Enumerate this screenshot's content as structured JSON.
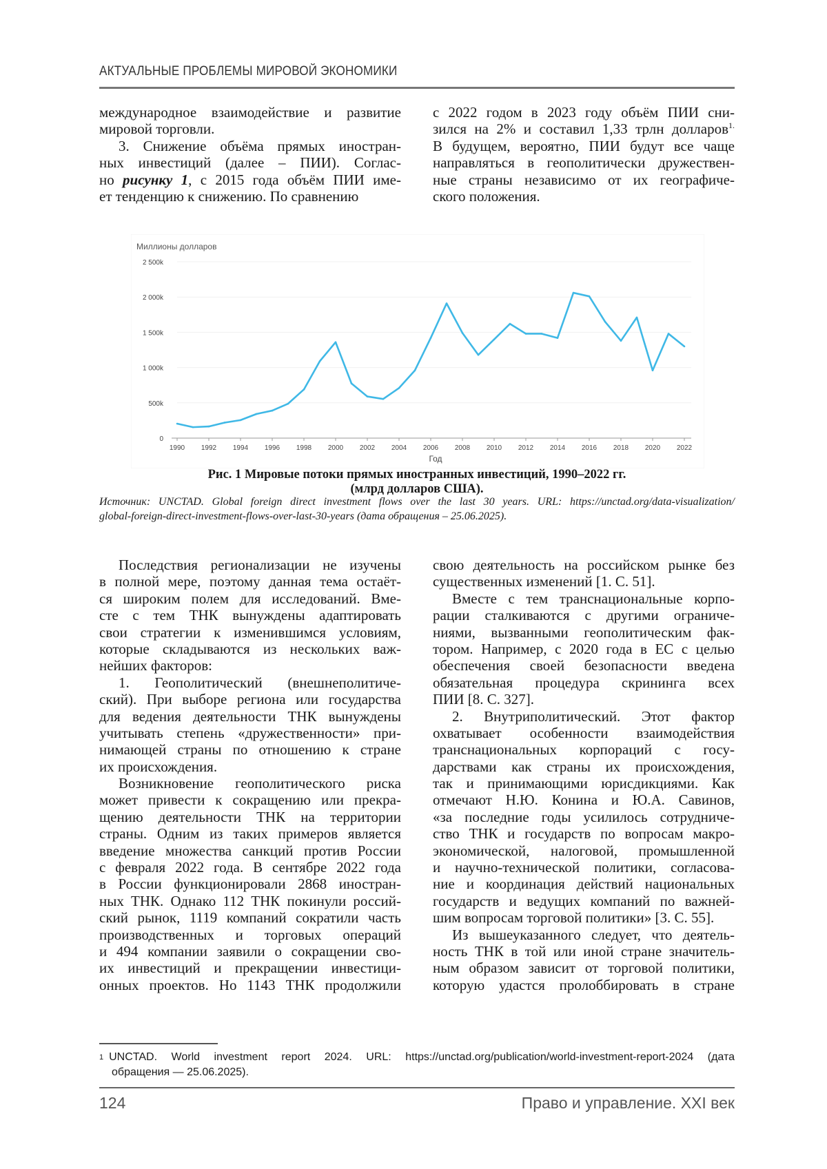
{
  "header": {
    "running_title": "АКТУАЛЬНЫЕ ПРОБЛЕМЫ МИРОВОЙ ЭКОНОМИКИ"
  },
  "top_left": [
    {
      "lines": [
        "международное взаимодействие и развитие",
        "мировой торговли."
      ]
    },
    {
      "lines": [
        "3.    Снижение объёма прямых иностран-",
        "ных инвестиций (далее – ПИИ). Соглас-",
        "но |рисунку 1|, с 2015 года объём ПИИ име-",
        "ет тенденцию к снижению. По сравнению"
      ],
      "indent": true
    }
  ],
  "top_right": [
    {
      "lines": [
        "с 2022 годом в 2023 году объём ПИИ сни-",
        "зился на 2% и составил 1,33 трлн долларов^1.",
        "В будущем, вероятно, ПИИ будут все чаще",
        "направляться в геополитически дружествен-",
        "ные страны независимо от их географиче-",
        "ского положения."
      ]
    }
  ],
  "chart_data": {
    "type": "line",
    "ylabel": "Миллионы долларов",
    "xlabel": "Год",
    "x": [
      1990,
      1991,
      1992,
      1993,
      1994,
      1995,
      1996,
      1997,
      1998,
      1999,
      2000,
      2001,
      2002,
      2003,
      2004,
      2005,
      2006,
      2007,
      2008,
      2009,
      2010,
      2011,
      2012,
      2013,
      2014,
      2015,
      2016,
      2017,
      2018,
      2019,
      2020,
      2021,
      2022
    ],
    "series": [
      {
        "values": [
          205,
          155,
          165,
          220,
          255,
          342,
          390,
          488,
          690,
          1090,
          1360,
          775,
          590,
          555,
          710,
          960,
          1420,
          1910,
          1490,
          1180,
          1400,
          1620,
          1480,
          1480,
          1420,
          2060,
          2010,
          1650,
          1380,
          1710,
          960,
          1480,
          1300
        ],
        "color": "#3fb8e6"
      }
    ],
    "y_ticks": [
      {
        "value": 0,
        "label": "0"
      },
      {
        "value": 500,
        "label": "500k"
      },
      {
        "value": 1000,
        "label": "1 000k"
      },
      {
        "value": 1500,
        "label": "1 500k"
      },
      {
        "value": 2000,
        "label": "2 000k"
      },
      {
        "value": 2500,
        "label": "2 500k"
      }
    ],
    "x_ticks": [
      "1990",
      "1992",
      "1994",
      "1996",
      "1998",
      "2000",
      "2002",
      "2004",
      "2006",
      "2008",
      "2010",
      "2012",
      "2014",
      "2016",
      "2018",
      "2020",
      "2022"
    ],
    "ylim": [
      0,
      2500
    ],
    "xlim": [
      1990,
      2022
    ],
    "grid": true,
    "legend": "none"
  },
  "figure": {
    "caption_line1": "Рис. 1 Мировые потоки прямых иностранных инвестиций, 1990–2022 гг.",
    "caption_line2": "(млрд долларов США).",
    "source_line1": "Источник: UNCTAD. Global foreign direct investment flows over the last 30 years. URL: https://unctad.org/data-visualization/",
    "source_line2": "global-foreign-direct-investment-flows-over-last-30-years (дата обращения  –  25.06.2025)."
  },
  "bottom_left": [
    {
      "indent": true,
      "lines": [
        "Последствия регионализации не изучены",
        "в полной мере, поэтому данная тема остаёт-",
        "ся широким полем для исследований. Вме-",
        "сте с тем ТНК вынуждены адаптировать",
        "свои стратегии к изменившимся условиям,",
        "которые складываются из нескольких важ-",
        "нейших факторов:"
      ]
    },
    {
      "indent": true,
      "lines": [
        "1.    Геополитический (внешнеполитиче-",
        "ский). При выборе региона или государства",
        "для ведения деятельности ТНК вынуждены",
        "учитывать степень «дружественности» при-",
        "нимающей страны по отношению к стране",
        "их происхождения."
      ]
    },
    {
      "indent": true,
      "lines": [
        "Возникновение геополитического риска",
        "может привести к сокращению или прекра-",
        "щению деятельности ТНК на территории",
        "страны. Одним из таких примеров является",
        "введение множества санкций против России",
        "с февраля 2022 года. В сентябре 2022 года",
        "в России функционировали 2868 иностран-",
        "ных ТНК. Однако 112 ТНК покинули россий-",
        "ский рынок, 1119 компаний сократили часть",
        "производственных и торговых операций",
        "и 494 компании заявили о сокращении сво-",
        "их инвестиций и прекращении инвестици-",
        "онных проектов. Но 1143 ТНК продолжили"
      ],
      "continues": true
    }
  ],
  "bottom_right": [
    {
      "lines": [
        "свою деятельность на российском рынке без",
        "существенных изменений [1. С. 51]."
      ]
    },
    {
      "indent": true,
      "lines": [
        "Вместе с тем транснациональные корпо-",
        "рации сталкиваются с другими ограниче-",
        "ниями, вызванными геополитическим фак-",
        "тором. Например, с 2020 года в ЕС с целью",
        "обеспечения своей безопасности введена",
        "обязательная процедура скрининга всех",
        "ПИИ [8. С. 327]."
      ]
    },
    {
      "indent": true,
      "lines": [
        "2. Внутриполитический. Этот фактор",
        "охватывает особенности взаимодействия",
        "транснациональных корпораций с госу-",
        "дарствами как страны их происхождения,",
        "так и принимающими юрисдикциями. Как",
        "отмечают Н.Ю. Конина и Ю.А. Савинов,",
        "«за последние годы усилилось сотрудниче-",
        "ство ТНК и государств по вопросам макро-",
        "экономической, налоговой, промышленной",
        "и научно-технической политики, согласова-",
        "ние и координация действий национальных",
        "государств и ведущих компаний по важней-",
        "шим вопросам торговой политики» [3. С. 55]."
      ]
    },
    {
      "indent": true,
      "lines": [
        "Из вышеуказанного следует, что деятель-",
        "ность ТНК в той или иной стране значитель-",
        "ным образом зависит от торговой политики,",
        "которую удастся пролоббировать в стране"
      ],
      "continues": true
    }
  ],
  "footnote": {
    "mark": "1",
    "line1": "UNCTAD. World investment report 2024. URL: https://unctad.org/publication/world-investment-report-2024 (дата",
    "line2": "обращения — 25.06.2025)."
  },
  "footer": {
    "page_number": "124",
    "journal": "Право и управление. XXI век"
  }
}
